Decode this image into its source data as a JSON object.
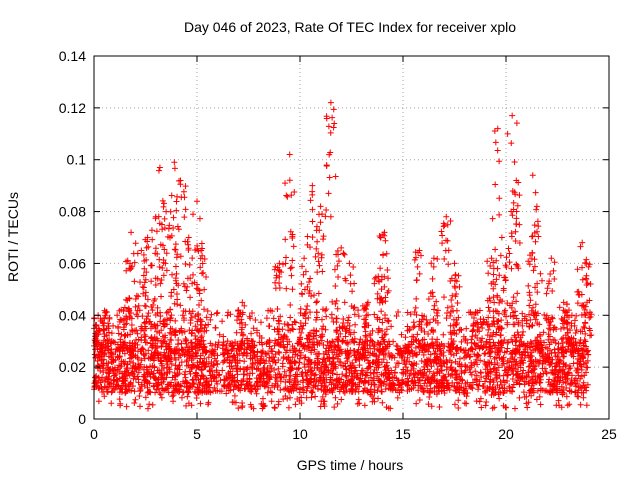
{
  "chart_data": {
    "type": "scatter",
    "title": "Day 046 of 2023, Rate Of TEC Index for receiver xplo",
    "xlabel": "GPS time / hours",
    "ylabel": "ROTI / TECUs",
    "xlim": [
      0,
      25
    ],
    "ylim": [
      0,
      0.14
    ],
    "x_ticks": [
      0,
      5,
      10,
      15,
      20,
      25
    ],
    "x_tick_labels": [
      "0",
      "5",
      "10",
      "15",
      "20",
      "25"
    ],
    "y_ticks": [
      0,
      0.02,
      0.04,
      0.06,
      0.08,
      0.1,
      0.12,
      0.14
    ],
    "y_tick_labels": [
      "0",
      "0.02",
      "0.04",
      "0.06",
      "0.08",
      "0.1",
      "0.12",
      "0.14"
    ],
    "grid": true,
    "marker": "+",
    "color": "#ff0000",
    "series": [
      {
        "name": "ROTI",
        "x_range": [
          0,
          24
        ],
        "baseline_band": [
          0.01,
          0.03
        ],
        "peaks": [
          {
            "x": 0.2,
            "y": 0.04
          },
          {
            "x": 0.5,
            "y": 0.039
          },
          {
            "x": 1.5,
            "y": 0.043
          },
          {
            "x": 1.8,
            "y": 0.072
          },
          {
            "x": 2.3,
            "y": 0.065
          },
          {
            "x": 2.6,
            "y": 0.07
          },
          {
            "x": 3.0,
            "y": 0.078
          },
          {
            "x": 3.2,
            "y": 0.097
          },
          {
            "x": 3.5,
            "y": 0.08
          },
          {
            "x": 3.9,
            "y": 0.099
          },
          {
            "x": 4.2,
            "y": 0.092
          },
          {
            "x": 4.6,
            "y": 0.07
          },
          {
            "x": 5.0,
            "y": 0.084
          },
          {
            "x": 5.2,
            "y": 0.065
          },
          {
            "x": 7.2,
            "y": 0.045
          },
          {
            "x": 9.0,
            "y": 0.06
          },
          {
            "x": 9.5,
            "y": 0.102
          },
          {
            "x": 10.2,
            "y": 0.062
          },
          {
            "x": 10.6,
            "y": 0.09
          },
          {
            "x": 11.0,
            "y": 0.082
          },
          {
            "x": 11.5,
            "y": 0.122
          },
          {
            "x": 12.0,
            "y": 0.066
          },
          {
            "x": 12.4,
            "y": 0.06
          },
          {
            "x": 13.3,
            "y": 0.045
          },
          {
            "x": 13.8,
            "y": 0.055
          },
          {
            "x": 14.1,
            "y": 0.072
          },
          {
            "x": 15.8,
            "y": 0.065
          },
          {
            "x": 16.5,
            "y": 0.062
          },
          {
            "x": 17.1,
            "y": 0.078
          },
          {
            "x": 17.5,
            "y": 0.06
          },
          {
            "x": 18.6,
            "y": 0.041
          },
          {
            "x": 19.3,
            "y": 0.062
          },
          {
            "x": 19.6,
            "y": 0.112
          },
          {
            "x": 19.8,
            "y": 0.07
          },
          {
            "x": 20.3,
            "y": 0.117
          },
          {
            "x": 20.5,
            "y": 0.092
          },
          {
            "x": 21.3,
            "y": 0.094
          },
          {
            "x": 21.5,
            "y": 0.082
          },
          {
            "x": 22.2,
            "y": 0.062
          },
          {
            "x": 22.8,
            "y": 0.045
          },
          {
            "x": 23.2,
            "y": 0.04
          },
          {
            "x": 23.7,
            "y": 0.068
          },
          {
            "x": 23.9,
            "y": 0.06
          }
        ]
      }
    ]
  }
}
